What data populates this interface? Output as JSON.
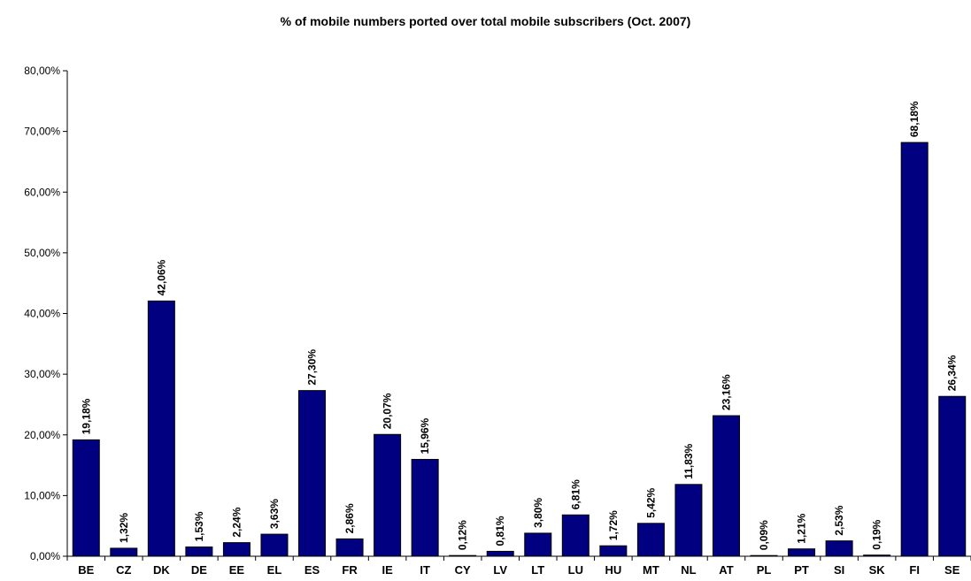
{
  "chart_data": {
    "type": "bar",
    "title": "% of mobile numbers ported over total mobile subscribers (Oct. 2007)",
    "xlabel": "",
    "ylabel": "",
    "ylim": [
      0,
      80
    ],
    "yticks": [
      0,
      10,
      20,
      30,
      40,
      50,
      60,
      70,
      80
    ],
    "ytick_labels": [
      "0,00%",
      "10,00%",
      "20,00%",
      "30,00%",
      "40,00%",
      "50,00%",
      "60,00%",
      "70,00%",
      "80,00%"
    ],
    "grid": false,
    "legend": "none",
    "bar_color": "#000080",
    "categories": [
      "BE",
      "CZ",
      "DK",
      "DE",
      "EE",
      "EL",
      "ES",
      "FR",
      "IE",
      "IT",
      "CY",
      "LV",
      "LT",
      "LU",
      "HU",
      "MT",
      "NL",
      "AT",
      "PL",
      "PT",
      "SI",
      "SK",
      "FI",
      "SE"
    ],
    "values": [
      19.18,
      1.32,
      42.06,
      1.53,
      2.24,
      3.63,
      27.3,
      2.86,
      20.07,
      15.96,
      0.12,
      0.81,
      3.8,
      6.81,
      1.72,
      5.42,
      11.83,
      23.16,
      0.09,
      1.21,
      2.53,
      0.19,
      68.18,
      26.34
    ],
    "data_labels": [
      "19,18%",
      "1,32%",
      "42,06%",
      "1,53%",
      "2,24%",
      "3,63%",
      "27,30%",
      "2,86%",
      "20,07%",
      "15,96%",
      "0,12%",
      "0,81%",
      "3,80%",
      "6,81%",
      "1,72%",
      "5,42%",
      "11,83%",
      "23,16%",
      "0,09%",
      "1,21%",
      "2,53%",
      "0,19%",
      "68,18%",
      "26,34%"
    ]
  }
}
